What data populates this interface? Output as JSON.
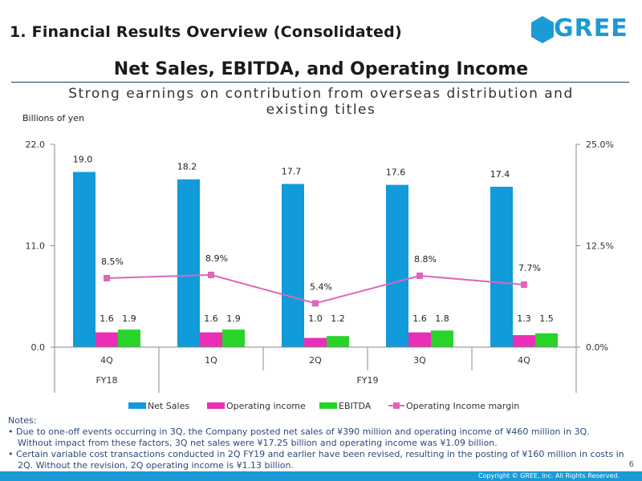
{
  "header": {
    "page_title": "1. Financial Results Overview (Consolidated)",
    "logo_text": "GREE"
  },
  "slide": {
    "title": "Net Sales, EBITDA, and Operating Income",
    "subtitle": "Strong earnings on contribution from overseas distribution and existing titles"
  },
  "chart_data": {
    "type": "bar",
    "ylabel": "Billions of yen",
    "ylim": [
      0,
      22
    ],
    "y_ticks": [
      "0.0",
      "11.0",
      "22.0"
    ],
    "y2lim": [
      0,
      25
    ],
    "y2_ticks": [
      "0.0%",
      "12.5%",
      "25.0%"
    ],
    "categories": [
      "4Q",
      "1Q",
      "2Q",
      "3Q",
      "4Q"
    ],
    "fiscal_years": [
      {
        "label": "FY18",
        "span": 1
      },
      {
        "label": "FY19",
        "span": 4
      }
    ],
    "series": [
      {
        "name": "Net Sales",
        "color": "#119bdb",
        "values": [
          19.0,
          18.2,
          17.7,
          17.6,
          17.4
        ],
        "labels": [
          "19.0",
          "18.2",
          "17.7",
          "17.6",
          "17.4"
        ]
      },
      {
        "name": "Operating income",
        "color": "#e92fb6",
        "values": [
          1.6,
          1.6,
          1.0,
          1.6,
          1.3
        ],
        "labels": [
          "1.6",
          "1.6",
          "1.0",
          "1.6",
          "1.3"
        ]
      },
      {
        "name": "EBITDA",
        "color": "#28d428",
        "values": [
          1.9,
          1.9,
          1.2,
          1.8,
          1.5
        ],
        "labels": [
          "1.9",
          "1.9",
          "1.2",
          "1.8",
          "1.5"
        ]
      }
    ],
    "line_series": {
      "name": "Operating Income margin",
      "color": "#dd66bb",
      "axis": "right",
      "values": [
        8.5,
        8.9,
        5.4,
        8.8,
        7.7
      ],
      "labels": [
        "8.5%",
        "8.9%",
        "5.4%",
        "8.8%",
        "7.7%"
      ]
    }
  },
  "notes": {
    "heading": "Notes:",
    "items": [
      {
        "first": "• Due to one-off events occurring in 3Q, the Company posted net sales of ¥390 million and operating income of ¥460 million in 3Q.",
        "second": "Without impact from these factors, 3Q net sales were ¥17.25 billion and operating income was ¥1.09 billion."
      },
      {
        "first": "• Certain variable cost transactions conducted in 2Q FY19 and earlier have been revised, resulting in the posting of ¥160 million in costs in",
        "second": "2Q. Without the revision, 2Q operating income is ¥1.13 billion."
      }
    ]
  },
  "footer": {
    "page_number": "6",
    "copyright": "Copyright © GREE, Inc. All Rights Reserved."
  }
}
